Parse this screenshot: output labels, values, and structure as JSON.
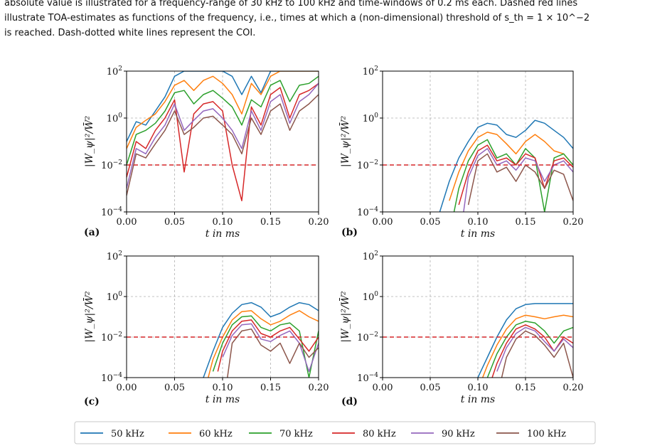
{
  "caption": {
    "line1": "absolute value is illustrated for a frequency-range of 30 kHz to 100 kHz and time-windows of 0.2 ms each. Dashed red lines",
    "line2": "illustrate TOA-estimates as functions of the frequency, i.e., times at which a (non-dimensional) threshold of s_th = 1 × 10^−2",
    "line3": "is reached. Dash-dotted white lines represent the COI."
  },
  "colors": {
    "50 kHz": "#1f77b4",
    "60 kHz": "#ff7f0e",
    "70 kHz": "#2ca02c",
    "80 kHz": "#d62728",
    "90 kHz": "#9467bd",
    "100 kHz": "#8c564b",
    "threshold": "#d62728",
    "grid": "#b0b0b0"
  },
  "chart_data": [
    {
      "panel": "(a)",
      "type": "line",
      "xlabel": "t in ms",
      "ylabel": "|W_ψ|²/W̄²",
      "yscale": "log",
      "xlim": [
        0,
        0.2
      ],
      "ylim": [
        0.0001,
        100
      ],
      "xticks": [
        "0.00",
        "0.05",
        "0.10",
        "0.15",
        "0.20"
      ],
      "yticks": [
        "10^2",
        "10^0",
        "10^-2",
        "10^-4"
      ],
      "grid": true,
      "threshold": 0.01,
      "series": [
        {
          "name": "50 kHz",
          "x": [
            0,
            0.01,
            0.02,
            0.03,
            0.04,
            0.05,
            0.06,
            0.07,
            0.08,
            0.09,
            0.1,
            0.11,
            0.12,
            0.13,
            0.14,
            0.15,
            0.16,
            0.17,
            0.18,
            0.19,
            0.2
          ],
          "y": [
            0.1,
            0.7,
            0.5,
            2,
            8,
            60,
            100,
            100,
            100,
            100,
            100,
            60,
            10,
            60,
            12,
            100,
            100,
            100,
            100,
            100,
            100
          ]
        },
        {
          "name": "60 kHz",
          "x": [
            0,
            0.01,
            0.02,
            0.03,
            0.04,
            0.05,
            0.06,
            0.07,
            0.08,
            0.09,
            0.1,
            0.11,
            0.12,
            0.13,
            0.14,
            0.15,
            0.16,
            0.17,
            0.18,
            0.19,
            0.2
          ],
          "y": [
            0.05,
            0.4,
            0.8,
            1.5,
            5,
            25,
            40,
            15,
            40,
            60,
            30,
            10,
            1.5,
            30,
            10,
            60,
            100,
            100,
            100,
            100,
            100
          ]
        },
        {
          "name": "70 kHz",
          "x": [
            0,
            0.01,
            0.02,
            0.03,
            0.04,
            0.05,
            0.06,
            0.07,
            0.08,
            0.09,
            0.1,
            0.11,
            0.12,
            0.13,
            0.14,
            0.15,
            0.16,
            0.17,
            0.18,
            0.19,
            0.2
          ],
          "y": [
            0.01,
            0.2,
            0.3,
            0.6,
            2,
            12,
            15,
            4,
            10,
            15,
            7,
            3,
            0.5,
            6,
            3,
            25,
            40,
            5,
            25,
            30,
            60
          ]
        },
        {
          "name": "80 kHz",
          "x": [
            0,
            0.01,
            0.02,
            0.03,
            0.04,
            0.05,
            0.06,
            0.07,
            0.08,
            0.09,
            0.1,
            0.11,
            0.12,
            0.13,
            0.14,
            0.15,
            0.16,
            0.17,
            0.18,
            0.19,
            0.2
          ],
          "y": [
            0.003,
            0.1,
            0.05,
            0.3,
            1,
            6,
            0.005,
            1.5,
            4,
            5,
            2,
            0.01,
            0.0003,
            3,
            0.5,
            10,
            20,
            1,
            10,
            15,
            30
          ]
        },
        {
          "name": "90 kHz",
          "x": [
            0,
            0.01,
            0.02,
            0.03,
            0.04,
            0.05,
            0.06,
            0.07,
            0.08,
            0.09,
            0.1,
            0.11,
            0.12,
            0.13,
            0.14,
            0.15,
            0.16,
            0.17,
            0.18,
            0.19,
            0.2
          ],
          "y": [
            0.001,
            0.05,
            0.03,
            0.15,
            0.5,
            4,
            0.3,
            0.8,
            2,
            2.5,
            1,
            0.3,
            0.05,
            2,
            0.3,
            5,
            10,
            0.6,
            5,
            10,
            30
          ]
        },
        {
          "name": "100 kHz",
          "x": [
            0,
            0.01,
            0.02,
            0.03,
            0.04,
            0.05,
            0.06,
            0.07,
            0.08,
            0.09,
            0.1,
            0.11,
            0.12,
            0.13,
            0.14,
            0.15,
            0.16,
            0.17,
            0.18,
            0.19,
            0.2
          ],
          "y": [
            0.0005,
            0.03,
            0.02,
            0.08,
            0.3,
            2,
            0.2,
            0.4,
            1,
            1.2,
            0.5,
            0.2,
            0.03,
            1,
            0.2,
            2,
            4,
            0.3,
            2,
            4,
            10
          ]
        }
      ]
    },
    {
      "panel": "(b)",
      "type": "line",
      "xlabel": "t in ms",
      "ylabel": "|W_ψ|²/W̄²",
      "yscale": "log",
      "xlim": [
        0,
        0.2
      ],
      "ylim": [
        0.0001,
        100
      ],
      "xticks": [
        "0.00",
        "0.05",
        "0.10",
        "0.15",
        "0.20"
      ],
      "yticks": [
        "10^2",
        "10^0",
        "10^-2",
        "10^-4"
      ],
      "grid": true,
      "threshold": 0.01,
      "series": [
        {
          "name": "50 kHz",
          "x": [
            0.06,
            0.07,
            0.08,
            0.09,
            0.1,
            0.11,
            0.12,
            0.13,
            0.14,
            0.15,
            0.16,
            0.17,
            0.18,
            0.19,
            0.2
          ],
          "y": [
            0.0001,
            0.002,
            0.02,
            0.1,
            0.4,
            0.6,
            0.5,
            0.2,
            0.15,
            0.3,
            0.8,
            0.6,
            0.3,
            0.15,
            0.05
          ]
        },
        {
          "name": "60 kHz",
          "x": [
            0.07,
            0.08,
            0.09,
            0.1,
            0.11,
            0.12,
            0.13,
            0.14,
            0.15,
            0.16,
            0.17,
            0.18,
            0.19,
            0.2
          ],
          "y": [
            0.0003,
            0.005,
            0.04,
            0.15,
            0.25,
            0.2,
            0.08,
            0.03,
            0.1,
            0.2,
            0.1,
            0.04,
            0.03,
            0.01
          ]
        },
        {
          "name": "70 kHz",
          "x": [
            0.075,
            0.08,
            0.09,
            0.1,
            0.11,
            0.12,
            0.13,
            0.14,
            0.15,
            0.16,
            0.17,
            0.18,
            0.19,
            0.2
          ],
          "y": [
            0.0001,
            0.001,
            0.015,
            0.07,
            0.12,
            0.02,
            0.03,
            0.01,
            0.05,
            0.02,
            0.0001,
            0.02,
            0.03,
            0.01
          ]
        },
        {
          "name": "80 kHz",
          "x": [
            0.08,
            0.09,
            0.1,
            0.11,
            0.12,
            0.13,
            0.14,
            0.15,
            0.16,
            0.17,
            0.18,
            0.19,
            0.2
          ],
          "y": [
            0.0002,
            0.005,
            0.04,
            0.07,
            0.015,
            0.02,
            0.01,
            0.03,
            0.02,
            0.001,
            0.015,
            0.02,
            0.008
          ]
        },
        {
          "name": "90 kHz",
          "x": [
            0.085,
            0.09,
            0.1,
            0.11,
            0.12,
            0.13,
            0.14,
            0.15,
            0.16,
            0.17,
            0.18,
            0.19,
            0.2
          ],
          "y": [
            0.0001,
            0.003,
            0.025,
            0.05,
            0.01,
            0.015,
            0.006,
            0.02,
            0.015,
            0.002,
            0.01,
            0.015,
            0.005
          ]
        },
        {
          "name": "100 kHz",
          "x": [
            0.09,
            0.1,
            0.11,
            0.12,
            0.13,
            0.14,
            0.15,
            0.16,
            0.17,
            0.18,
            0.19,
            0.2
          ],
          "y": [
            0.0002,
            0.015,
            0.03,
            0.005,
            0.008,
            0.002,
            0.01,
            0.005,
            0.001,
            0.006,
            0.004,
            0.0003
          ]
        }
      ]
    },
    {
      "panel": "(c)",
      "type": "line",
      "xlabel": "t in ms",
      "ylabel": "|W_ψ|²/W̄²",
      "yscale": "log",
      "xlim": [
        0,
        0.2
      ],
      "ylim": [
        0.0001,
        100
      ],
      "xticks": [
        "0.00",
        "0.05",
        "0.10",
        "0.15",
        "0.20"
      ],
      "yticks": [
        "10^2",
        "10^0",
        "10^-2",
        "10^-4"
      ],
      "grid": true,
      "threshold": 0.01,
      "series": [
        {
          "name": "50 kHz",
          "x": [
            0.08,
            0.09,
            0.1,
            0.11,
            0.12,
            0.13,
            0.14,
            0.15,
            0.16,
            0.17,
            0.18,
            0.19,
            0.2
          ],
          "y": [
            0.0001,
            0.002,
            0.03,
            0.15,
            0.4,
            0.5,
            0.3,
            0.1,
            0.15,
            0.3,
            0.5,
            0.4,
            0.2
          ]
        },
        {
          "name": "60 kHz",
          "x": [
            0.085,
            0.09,
            0.1,
            0.11,
            0.12,
            0.13,
            0.14,
            0.15,
            0.16,
            0.17,
            0.18,
            0.19,
            0.2
          ],
          "y": [
            0.0001,
            0.0008,
            0.01,
            0.07,
            0.18,
            0.2,
            0.08,
            0.04,
            0.06,
            0.12,
            0.2,
            0.1,
            0.06
          ]
        },
        {
          "name": "70 kHz",
          "x": [
            0.09,
            0.1,
            0.11,
            0.12,
            0.13,
            0.14,
            0.15,
            0.16,
            0.17,
            0.18,
            0.19,
            0.2
          ],
          "y": [
            0.0002,
            0.005,
            0.04,
            0.1,
            0.11,
            0.03,
            0.02,
            0.04,
            0.05,
            0.02,
            0.0001,
            0.02
          ]
        },
        {
          "name": "80 kHz",
          "x": [
            0.095,
            0.1,
            0.11,
            0.12,
            0.13,
            0.14,
            0.15,
            0.16,
            0.17,
            0.18,
            0.19,
            0.2
          ],
          "y": [
            0.0002,
            0.002,
            0.02,
            0.06,
            0.07,
            0.015,
            0.01,
            0.02,
            0.03,
            0.008,
            0.002,
            0.01
          ]
        },
        {
          "name": "90 kHz",
          "x": [
            0.1,
            0.11,
            0.12,
            0.13,
            0.14,
            0.15,
            0.16,
            0.17,
            0.18,
            0.19,
            0.2
          ],
          "y": [
            0.001,
            0.012,
            0.04,
            0.045,
            0.008,
            0.006,
            0.012,
            0.02,
            0.005,
            0.0002,
            0.005
          ]
        },
        {
          "name": "100 kHz",
          "x": [
            0.105,
            0.11,
            0.12,
            0.13,
            0.14,
            0.15,
            0.16,
            0.17,
            0.18,
            0.19,
            0.2
          ],
          "y": [
            0.0001,
            0.005,
            0.02,
            0.025,
            0.004,
            0.002,
            0.005,
            0.0005,
            0.005,
            0.001,
            0.003
          ]
        }
      ]
    },
    {
      "panel": "(d)",
      "type": "line",
      "xlabel": "t in ms",
      "ylabel": "|W_ψ|²/W̄²",
      "yscale": "log",
      "xlim": [
        0,
        0.2
      ],
      "ylim": [
        0.0001,
        100
      ],
      "xticks": [
        "0.00",
        "0.05",
        "0.10",
        "0.15",
        "0.20"
      ],
      "yticks": [
        "10^2",
        "10^0",
        "10^-2",
        "10^-4"
      ],
      "grid": true,
      "threshold": 0.01,
      "series": [
        {
          "name": "50 kHz",
          "x": [
            0.1,
            0.11,
            0.12,
            0.13,
            0.14,
            0.15,
            0.16,
            0.17,
            0.18,
            0.19,
            0.2
          ],
          "y": [
            0.0001,
            0.001,
            0.01,
            0.07,
            0.25,
            0.4,
            0.45,
            0.45,
            0.45,
            0.45,
            0.45
          ]
        },
        {
          "name": "60 kHz",
          "x": [
            0.105,
            0.11,
            0.12,
            0.13,
            0.14,
            0.15,
            0.16,
            0.17,
            0.18,
            0.19,
            0.2
          ],
          "y": [
            0.0001,
            0.0004,
            0.004,
            0.025,
            0.08,
            0.12,
            0.1,
            0.08,
            0.1,
            0.12,
            0.1
          ]
        },
        {
          "name": "70 kHz",
          "x": [
            0.11,
            0.12,
            0.13,
            0.14,
            0.15,
            0.16,
            0.17,
            0.18,
            0.19,
            0.2
          ],
          "y": [
            0.0001,
            0.0015,
            0.01,
            0.04,
            0.06,
            0.05,
            0.02,
            0.005,
            0.02,
            0.03
          ]
        },
        {
          "name": "80 kHz",
          "x": [
            0.115,
            0.12,
            0.13,
            0.14,
            0.15,
            0.16,
            0.17,
            0.18,
            0.19,
            0.2
          ],
          "y": [
            0.0001,
            0.0005,
            0.005,
            0.025,
            0.04,
            0.025,
            0.01,
            0.002,
            0.01,
            0.005
          ]
        },
        {
          "name": "90 kHz",
          "x": [
            0.12,
            0.13,
            0.14,
            0.15,
            0.16,
            0.17,
            0.18,
            0.19,
            0.2
          ],
          "y": [
            0.0002,
            0.003,
            0.015,
            0.03,
            0.02,
            0.006,
            0.002,
            0.008,
            0.003
          ]
        },
        {
          "name": "100 kHz",
          "x": [
            0.125,
            0.13,
            0.14,
            0.15,
            0.16,
            0.17,
            0.18,
            0.19,
            0.2
          ],
          "y": [
            0.0001,
            0.001,
            0.008,
            0.02,
            0.012,
            0.004,
            0.001,
            0.005,
            0.0001
          ]
        }
      ]
    }
  ]
}
